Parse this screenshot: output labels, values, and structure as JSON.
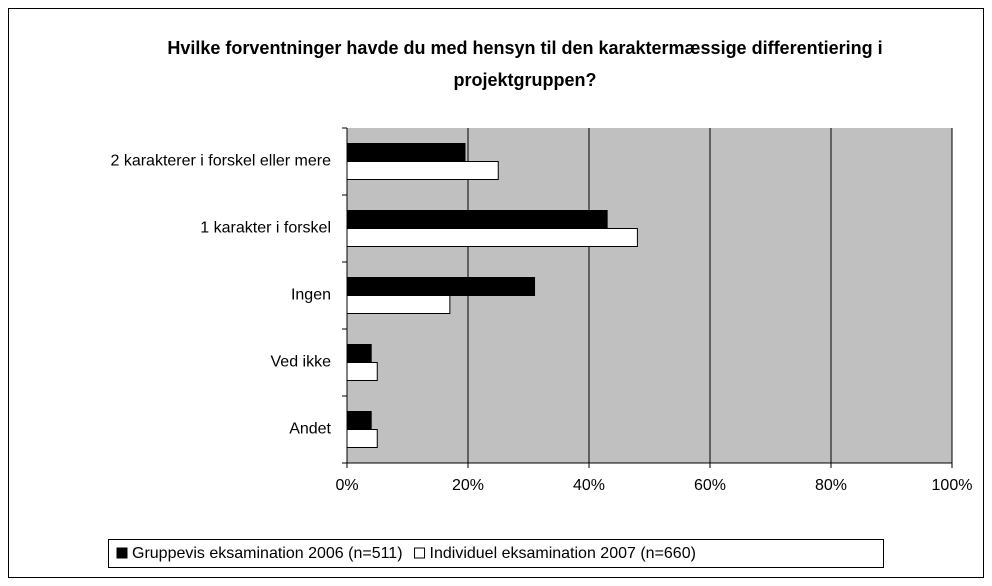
{
  "chart_data": {
    "type": "hbar",
    "title": "Hvilke forventninger havde du med hensyn til den karaktermæssige differentiering i projektgruppen?",
    "categories": [
      "2 karakterer i forskel eller mere",
      "1 karakter i forskel",
      "Ingen",
      "Ved ikke",
      "Andet"
    ],
    "series": [
      {
        "name": "Gruppevis eksamination 2006 (n=511)",
        "color": "#000000",
        "values": [
          19.5,
          43,
          31,
          4,
          4
        ]
      },
      {
        "name": "Individuel eksamination 2007 (n=660)",
        "color": "#ffffff",
        "values": [
          25,
          48,
          17,
          5,
          5
        ]
      }
    ],
    "xlim": [
      0,
      100
    ],
    "xticks": [
      {
        "value": 0,
        "label": "0%"
      },
      {
        "value": 20,
        "label": "20%"
      },
      {
        "value": 40,
        "label": "40%"
      },
      {
        "value": 60,
        "label": "60%"
      },
      {
        "value": 80,
        "label": "80%"
      },
      {
        "value": 100,
        "label": "100%"
      }
    ],
    "grid": true,
    "plot_background": "#c0c0c0",
    "legend": "bottom"
  }
}
